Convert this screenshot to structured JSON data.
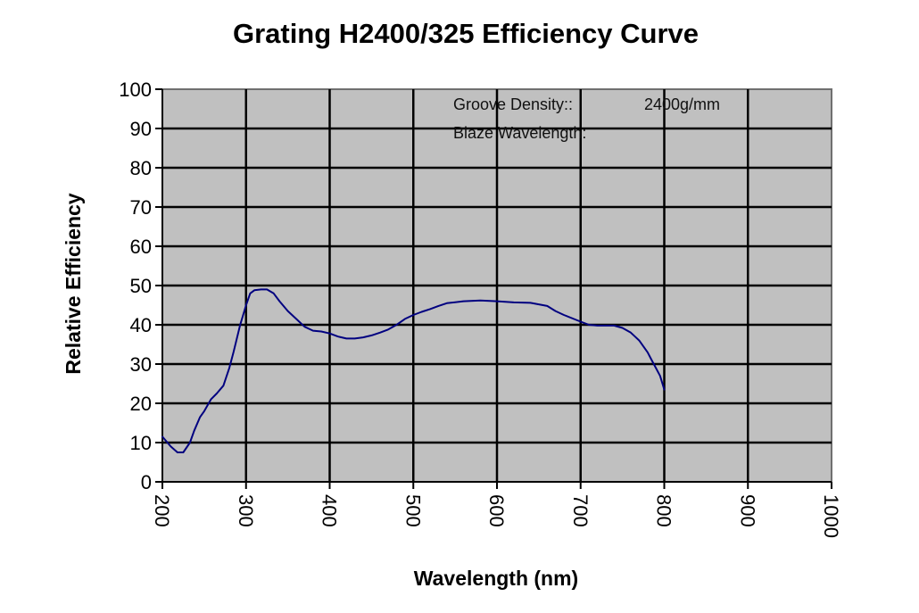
{
  "chart_data": {
    "type": "line",
    "title": "Grating H2400/325 Efficiency Curve",
    "xlabel": "Wavelength (nm)",
    "ylabel": "Relative Efficiency",
    "xlim": [
      200,
      1000
    ],
    "ylim": [
      0,
      100
    ],
    "xticks": [
      200,
      300,
      400,
      500,
      600,
      700,
      800,
      900,
      1000
    ],
    "yticks": [
      0,
      10,
      20,
      30,
      40,
      50,
      60,
      70,
      80,
      90,
      100
    ],
    "grid": true,
    "colors": {
      "plot_bg": "#c0c0c0",
      "grid": "#000000",
      "line": "#000080"
    },
    "annotations": [
      {
        "label": "Groove Density::",
        "value": "2400g/mm"
      },
      {
        "label": "Blaze Wavelength:",
        "value": ""
      }
    ],
    "series": [
      {
        "name": "Efficiency",
        "x": [
          200,
          210,
          218,
          225,
          233,
          238,
          245,
          250,
          258,
          265,
          273,
          280,
          285,
          293,
          300,
          305,
          310,
          318,
          325,
          333,
          340,
          350,
          360,
          370,
          380,
          390,
          400,
          410,
          420,
          430,
          440,
          450,
          460,
          470,
          480,
          490,
          500,
          510,
          520,
          530,
          540,
          560,
          580,
          600,
          620,
          640,
          660,
          670,
          680,
          700,
          710,
          720,
          740,
          750,
          760,
          765,
          770,
          775,
          780,
          785,
          790,
          795,
          800
        ],
        "y": [
          11.5,
          9,
          7.5,
          7.5,
          10,
          13,
          16.5,
          18,
          21,
          22.5,
          24.5,
          29,
          33,
          40,
          45,
          48,
          48.8,
          49,
          49,
          48,
          46,
          43.5,
          41.5,
          39.5,
          38.5,
          38.3,
          37.8,
          37,
          36.5,
          36.5,
          36.8,
          37.3,
          38,
          38.8,
          40,
          41.5,
          42.5,
          43.3,
          44,
          44.8,
          45.5,
          46,
          46.2,
          46,
          45.7,
          45.6,
          44.8,
          43.5,
          42.5,
          40.8,
          40,
          39.8,
          39.8,
          39.2,
          38,
          37,
          36,
          34.5,
          33,
          31,
          29,
          27,
          23.5
        ]
      }
    ]
  }
}
